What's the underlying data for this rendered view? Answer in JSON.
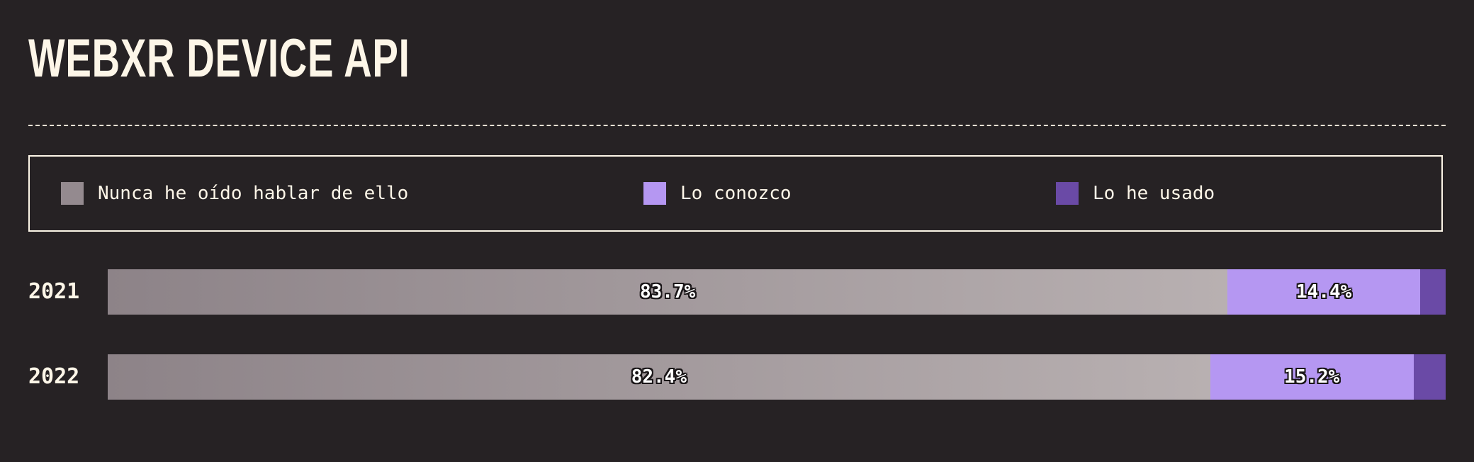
{
  "title": "WEBXR DEVICE API",
  "legend": [
    {
      "label": "Nunca he oído hablar de ello",
      "color": "#948a8f"
    },
    {
      "label": "Lo conozco",
      "color": "#b597f2"
    },
    {
      "label": "Lo he usado",
      "color": "#6a4aa6"
    }
  ],
  "colors": {
    "background": "#262224",
    "text": "#fdf6e8",
    "never_gradient_start": "#8d8388",
    "never_gradient_end": "#b8b0b1",
    "known": "#b597f2",
    "used": "#6a4aa6"
  },
  "chart_data": {
    "type": "bar",
    "orientation": "horizontal",
    "stacked": true,
    "normalized": true,
    "categories": [
      "2021",
      "2022"
    ],
    "series": [
      {
        "name": "Nunca he oído hablar de ello",
        "values": [
          83.7,
          82.4
        ],
        "labels": [
          "83.7%",
          "82.4%"
        ]
      },
      {
        "name": "Lo conozco",
        "values": [
          14.4,
          15.2
        ],
        "labels": [
          "14.4%",
          "15.2%"
        ]
      },
      {
        "name": "Lo he usado",
        "values": [
          1.9,
          2.4
        ],
        "labels": [
          "",
          ""
        ]
      }
    ],
    "xlim": [
      0,
      100
    ],
    "grid": false,
    "legend_position": "top"
  }
}
